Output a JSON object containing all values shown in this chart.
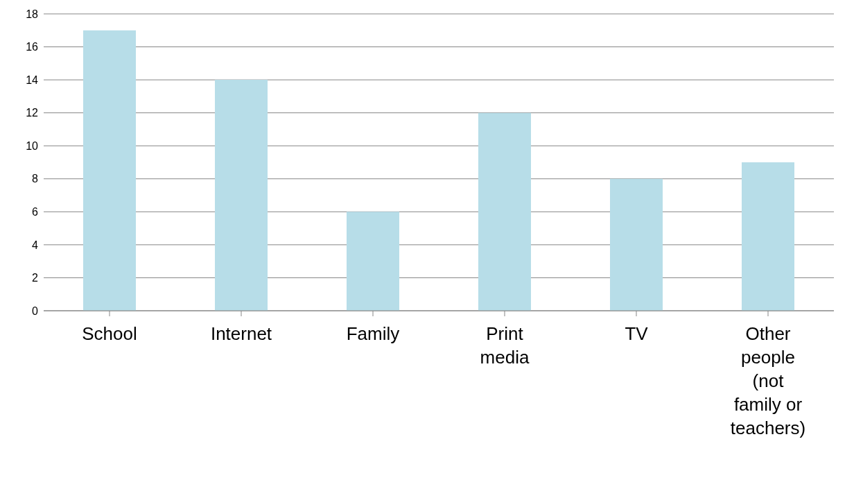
{
  "chart_data": {
    "type": "bar",
    "categories": [
      "School",
      "Internet",
      "Family",
      "Print media",
      "TV",
      "Other people (not family or teachers)"
    ],
    "values": [
      17,
      14,
      6,
      12,
      8,
      9
    ],
    "color": "#b7dde8",
    "ylim": [
      0,
      18
    ],
    "yticks": [
      0,
      2,
      4,
      6,
      8,
      10,
      12,
      14,
      16,
      18
    ],
    "grid": "y"
  }
}
